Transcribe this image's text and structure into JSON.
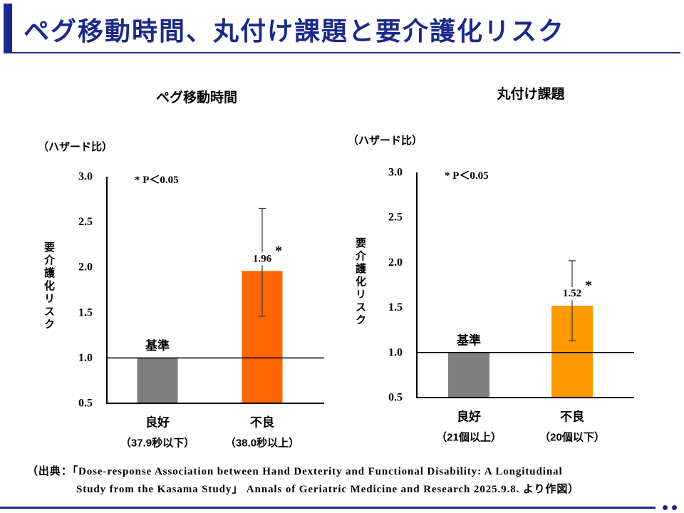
{
  "slide": {
    "title": "ペグ移動時間、丸付け課題と要介護化リスク",
    "accent_color": "#1b2a8a",
    "source_line1": "（出典：「Dose-response Association between Hand Dexterity and Functional Disability: A Longitudinal",
    "source_line2": "Study from the Kasama Study」 Annals of Geriatric Medicine and Research 2025.9.8. より作図）"
  },
  "chart_data": [
    {
      "type": "bar",
      "title": "ペグ移動時間",
      "unit_label": "（ハザード比）",
      "ylabel": "要介護化リスク",
      "annotation": "* P＜0.05",
      "ylim": [
        0.5,
        3.0
      ],
      "ytick_labels": [
        "0.5",
        "1.0",
        "1.5",
        "2.0",
        "2.5",
        "3.0"
      ],
      "grid": false,
      "reference_line": 1.0,
      "categories": [
        "良好",
        "不良"
      ],
      "category_sublabels": [
        "（37.9秒以下）",
        "（38.0秒以上）"
      ],
      "values": [
        1.0,
        1.96
      ],
      "data_labels": [
        "基準",
        "1.96"
      ],
      "error_bars": [
        null,
        [
          1.46,
          2.65
        ]
      ],
      "significance": [
        "",
        "*"
      ],
      "colors": [
        "#7f7f7f",
        "#ff6600"
      ]
    },
    {
      "type": "bar",
      "title": "丸付け課題",
      "unit_label": "（ハザード比）",
      "ylabel": "要介護化リスク",
      "annotation": "* P＜0.05",
      "ylim": [
        0.5,
        3.0
      ],
      "ytick_labels": [
        "0.5",
        "1.0",
        "1.5",
        "2.0",
        "2.5",
        "3.0"
      ],
      "grid": false,
      "reference_line": 1.0,
      "categories": [
        "良好",
        "不良"
      ],
      "category_sublabels": [
        "（21個以上）",
        "（20個以下）"
      ],
      "values": [
        1.0,
        1.52
      ],
      "data_labels": [
        "基準",
        "1.52"
      ],
      "error_bars": [
        null,
        [
          1.13,
          2.02
        ]
      ],
      "significance": [
        "",
        "*"
      ],
      "colors": [
        "#7f7f7f",
        "#ff9900"
      ]
    }
  ]
}
